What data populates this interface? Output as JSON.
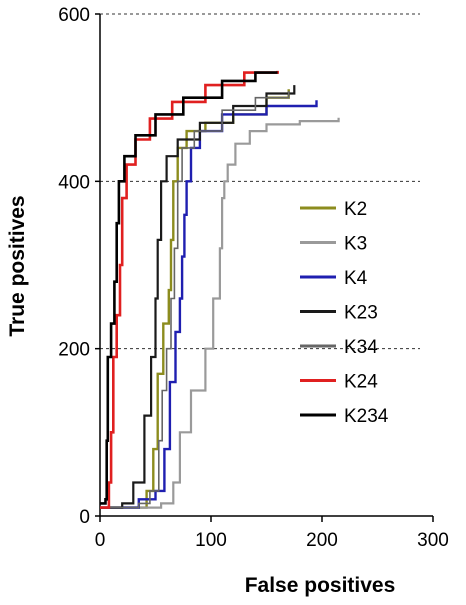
{
  "chart_data": {
    "type": "line",
    "xlabel": "False positives",
    "ylabel": "True positives",
    "xlim": [
      0,
      300
    ],
    "ylim": [
      0,
      600
    ],
    "x_ticks": [
      "0",
      "100",
      "200",
      "300"
    ],
    "y_ticks": [
      "0",
      "200",
      "400",
      "600"
    ],
    "grid": "horizontal dashed",
    "legend_position": "right",
    "series": [
      {
        "name": "K2",
        "color": "#8c8c1e",
        "width": 2.4,
        "points": [
          [
            0,
            10
          ],
          [
            30,
            10
          ],
          [
            42,
            30
          ],
          [
            48,
            80
          ],
          [
            52,
            170
          ],
          [
            57,
            230
          ],
          [
            62,
            270
          ],
          [
            64,
            330
          ],
          [
            66,
            400
          ],
          [
            70,
            440
          ],
          [
            78,
            460
          ],
          [
            95,
            470
          ],
          [
            120,
            480
          ],
          [
            150,
            500
          ],
          [
            170,
            510
          ]
        ]
      },
      {
        "name": "K3",
        "color": "#9a9a9a",
        "width": 2.2,
        "points": [
          [
            0,
            10
          ],
          [
            55,
            15
          ],
          [
            66,
            40
          ],
          [
            72,
            100
          ],
          [
            82,
            150
          ],
          [
            95,
            200
          ],
          [
            102,
            260
          ],
          [
            108,
            320
          ],
          [
            110,
            380
          ],
          [
            112,
            400
          ],
          [
            115,
            420
          ],
          [
            122,
            445
          ],
          [
            135,
            460
          ],
          [
            150,
            468
          ],
          [
            180,
            472
          ],
          [
            215,
            476
          ]
        ]
      },
      {
        "name": "K4",
        "color": "#1f1fb0",
        "width": 2.4,
        "points": [
          [
            0,
            10
          ],
          [
            35,
            20
          ],
          [
            50,
            30
          ],
          [
            58,
            80
          ],
          [
            63,
            160
          ],
          [
            68,
            220
          ],
          [
            72,
            260
          ],
          [
            74,
            310
          ],
          [
            76,
            360
          ],
          [
            78,
            400
          ],
          [
            82,
            440
          ],
          [
            90,
            460
          ],
          [
            110,
            480
          ],
          [
            150,
            490
          ],
          [
            195,
            497
          ]
        ]
      },
      {
        "name": "K23",
        "color": "#1a1a1a",
        "width": 2.2,
        "points": [
          [
            0,
            10
          ],
          [
            20,
            15
          ],
          [
            30,
            40
          ],
          [
            40,
            120
          ],
          [
            46,
            190
          ],
          [
            50,
            260
          ],
          [
            52,
            330
          ],
          [
            55,
            400
          ],
          [
            60,
            430
          ],
          [
            70,
            450
          ],
          [
            90,
            470
          ],
          [
            120,
            490
          ],
          [
            150,
            505
          ],
          [
            175,
            515
          ]
        ]
      },
      {
        "name": "K34",
        "color": "#666666",
        "width": 1.6,
        "points": [
          [
            0,
            10
          ],
          [
            35,
            15
          ],
          [
            45,
            30
          ],
          [
            53,
            90
          ],
          [
            56,
            150
          ],
          [
            60,
            200
          ],
          [
            64,
            260
          ],
          [
            67,
            320
          ],
          [
            70,
            400
          ],
          [
            74,
            440
          ],
          [
            85,
            460
          ],
          [
            110,
            485
          ],
          [
            140,
            500
          ],
          [
            170,
            508
          ]
        ]
      },
      {
        "name": "K24",
        "color": "#e02020",
        "width": 2.6,
        "points": [
          [
            0,
            10
          ],
          [
            8,
            40
          ],
          [
            10,
            100
          ],
          [
            12,
            190
          ],
          [
            15,
            240
          ],
          [
            18,
            300
          ],
          [
            20,
            380
          ],
          [
            24,
            420
          ],
          [
            32,
            450
          ],
          [
            45,
            475
          ],
          [
            65,
            495
          ],
          [
            95,
            515
          ],
          [
            130,
            530
          ],
          [
            160,
            532
          ]
        ]
      },
      {
        "name": "K234",
        "color": "#000000",
        "width": 2.6,
        "points": [
          [
            0,
            15
          ],
          [
            5,
            20
          ],
          [
            6,
            90
          ],
          [
            7,
            190
          ],
          [
            10,
            230
          ],
          [
            13,
            280
          ],
          [
            15,
            350
          ],
          [
            17,
            400
          ],
          [
            22,
            430
          ],
          [
            32,
            455
          ],
          [
            50,
            480
          ],
          [
            75,
            500
          ],
          [
            110,
            520
          ],
          [
            140,
            530
          ],
          [
            160,
            530
          ]
        ]
      }
    ]
  }
}
